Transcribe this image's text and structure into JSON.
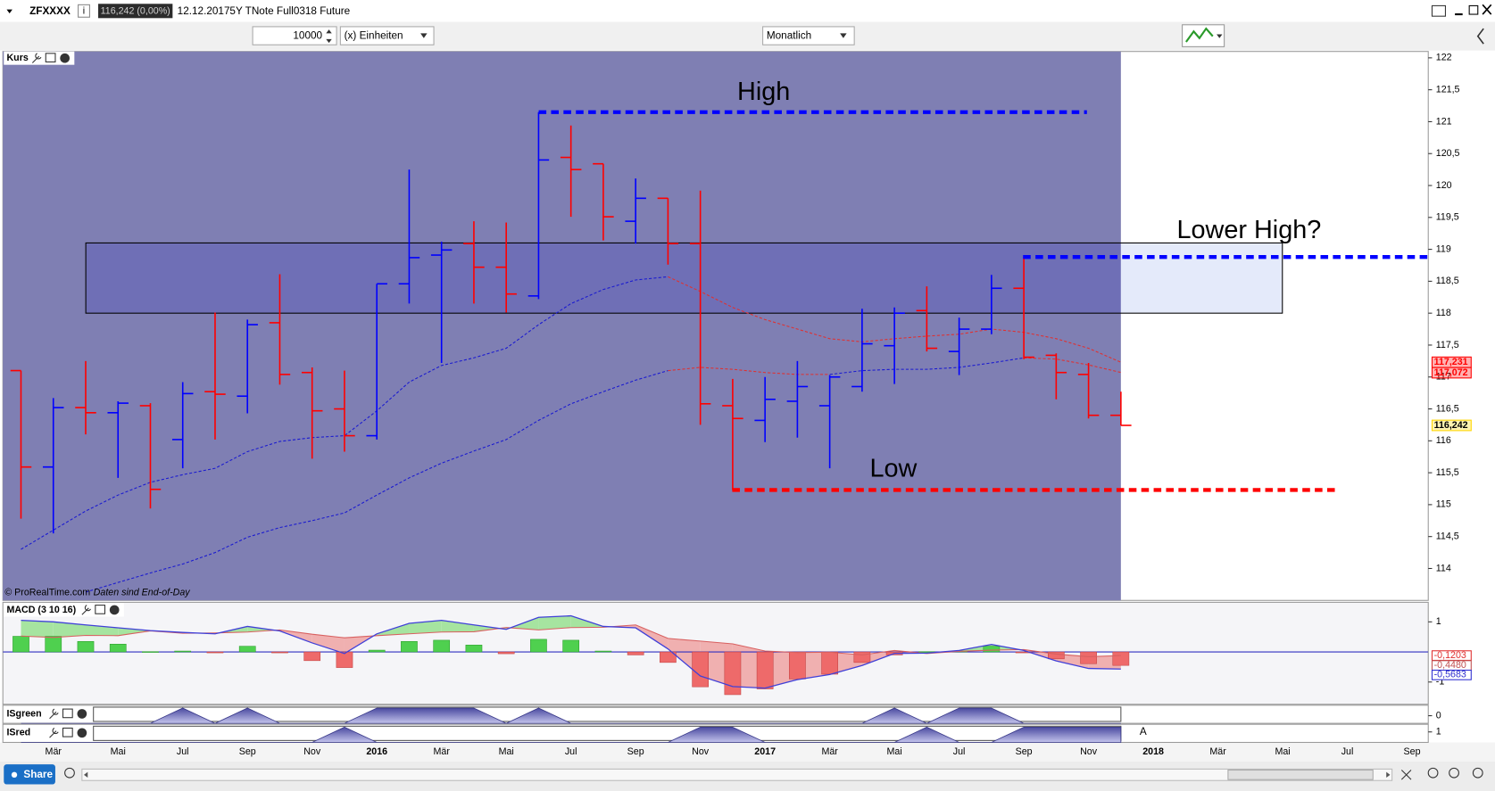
{
  "ui": {
    "symbol": "ZFXXXX",
    "quote": "116,242 (0,00%)",
    "date": "12.12.2017",
    "instrument": "5Y TNote Full0318 Future",
    "quantity": "10000",
    "units": "(x) Einheiten",
    "period": "Monatlich",
    "copyright": "© ProRealTime.com",
    "data_note": "Daten sind End-of-Day",
    "share": "Share",
    "marker": "A"
  },
  "chart_data": [
    {
      "type": "ohlc",
      "title": "Kurs",
      "categories": [
        null,
        "Mär",
        null,
        "Mai",
        null,
        "Jul",
        null,
        "Sep",
        null,
        "Nov",
        null,
        "2016",
        null,
        "Mär",
        null,
        "Mai",
        null,
        "Jul",
        null,
        "Sep",
        null,
        "Nov",
        null,
        "2017",
        null,
        "Mär",
        null,
        "Mai",
        null,
        "Jul",
        null,
        "Sep",
        null,
        "Nov",
        null,
        "2018",
        null,
        "Mär",
        null,
        "Mai",
        null,
        "Jul",
        null,
        "Sep"
      ],
      "open": [
        117.1,
        115.59,
        116.52,
        116.44,
        116.55,
        116.02,
        116.77,
        116.7,
        117.85,
        117.07,
        116.5,
        116.08,
        118.46,
        118.91,
        119.09,
        118.72,
        118.27,
        120.44,
        120.34,
        119.44,
        119.8,
        119.09,
        116.55,
        116.32,
        116.62,
        116.55,
        116.85,
        117.49,
        118.04,
        117.4,
        117.75,
        118.39,
        117.34,
        117.04,
        116.4,
        null,
        null,
        null,
        null,
        null,
        null,
        null,
        null,
        null
      ],
      "high": [
        117.1,
        116.67,
        117.25,
        116.62,
        116.59,
        116.92,
        118.01,
        117.9,
        118.61,
        117.15,
        117.1,
        118.46,
        120.25,
        119.12,
        119.44,
        119.42,
        121.15,
        120.94,
        120.34,
        120.11,
        119.8,
        119.92,
        116.97,
        117.0,
        117.25,
        117.03,
        118.07,
        118.09,
        118.42,
        117.93,
        118.6,
        118.88,
        117.37,
        117.22,
        116.77,
        null,
        null,
        null,
        null,
        null,
        null,
        null,
        null,
        null
      ],
      "low": [
        114.78,
        114.55,
        116.1,
        115.42,
        114.94,
        115.57,
        116.02,
        116.43,
        116.88,
        115.72,
        115.83,
        116.02,
        118.15,
        117.22,
        118.15,
        118.01,
        118.22,
        119.51,
        119.14,
        119.09,
        118.76,
        116.25,
        115.23,
        115.98,
        116.05,
        115.57,
        116.77,
        116.89,
        117.4,
        117.03,
        117.67,
        117.28,
        116.65,
        116.35,
        116.24,
        null,
        null,
        null,
        null,
        null,
        null,
        null,
        null,
        null
      ],
      "close": [
        115.59,
        116.52,
        116.44,
        116.59,
        115.24,
        116.74,
        116.73,
        117.82,
        117.04,
        116.47,
        116.08,
        118.46,
        118.87,
        118.99,
        118.72,
        118.3,
        120.4,
        120.25,
        119.51,
        119.8,
        119.09,
        116.58,
        116.35,
        116.65,
        116.85,
        117.0,
        117.52,
        118.0,
        117.45,
        117.75,
        118.39,
        117.31,
        117.07,
        116.4,
        116.242,
        null,
        null,
        null,
        null,
        null,
        null,
        null,
        null,
        null
      ],
      "up_color": "#0000ff",
      "down_color": "#ff0000",
      "moving_averages": [
        {
          "color": "#1a1ad0",
          "values": [
            114.3,
            114.6,
            114.9,
            115.15,
            115.35,
            115.47,
            115.57,
            115.83,
            115.99,
            116.05,
            116.08,
            116.47,
            116.92,
            117.18,
            117.3,
            117.45,
            117.82,
            118.15,
            118.37,
            118.52,
            118.57,
            null,
            null,
            null,
            null,
            null,
            null,
            null,
            null,
            null,
            null,
            null,
            null,
            null,
            null,
            null,
            null,
            null,
            null,
            null,
            null,
            null,
            null,
            null
          ]
        },
        {
          "color": "#e03030",
          "values": [
            null,
            null,
            null,
            null,
            null,
            null,
            null,
            null,
            null,
            null,
            null,
            null,
            null,
            null,
            null,
            null,
            null,
            null,
            null,
            null,
            118.57,
            118.34,
            118.09,
            117.9,
            117.75,
            117.6,
            117.55,
            117.6,
            117.64,
            117.67,
            117.75,
            117.7,
            117.6,
            117.45,
            117.231,
            null,
            null,
            null,
            null,
            null,
            null,
            null,
            null,
            null
          ]
        },
        {
          "color": "#1a1ad0",
          "values": [
            null,
            null,
            113.63,
            113.78,
            113.93,
            114.07,
            114.25,
            114.49,
            114.64,
            114.75,
            114.87,
            115.15,
            115.42,
            115.65,
            115.84,
            116.02,
            116.32,
            116.58,
            116.77,
            116.95,
            117.1,
            null,
            null,
            null,
            null,
            117.04,
            117.1,
            117.12,
            117.12,
            117.15,
            117.22,
            117.3,
            null,
            null,
            null,
            null,
            null,
            null,
            null,
            null,
            null,
            null,
            null,
            null
          ]
        },
        {
          "color": "#e03030",
          "values": [
            null,
            null,
            null,
            null,
            null,
            null,
            null,
            null,
            null,
            null,
            null,
            null,
            null,
            null,
            null,
            null,
            null,
            null,
            null,
            null,
            117.1,
            117.15,
            117.12,
            117.07,
            117.04,
            117.04,
            null,
            null,
            null,
            null,
            null,
            117.3,
            117.28,
            117.19,
            117.072,
            null,
            null,
            null,
            null,
            null,
            null,
            null,
            null,
            null
          ]
        }
      ],
      "zone": [
        118.0,
        119.1
      ],
      "levels": [
        {
          "label": "High",
          "value": 121.15,
          "color": "#0000ff"
        },
        {
          "label": "Low",
          "value": 115.23,
          "color": "#ff0000"
        },
        {
          "label": "Lower High?",
          "value": 118.88,
          "color": "#0000ff"
        }
      ],
      "price_labels": [
        {
          "value": 117.231,
          "label": "117,231",
          "color": "#ff0000"
        },
        {
          "value": 117.072,
          "label": "117,072",
          "color": "#ff0000"
        },
        {
          "value": 116.242,
          "label": "116,242",
          "color": "#ffd700"
        }
      ],
      "ylim": [
        113.5,
        122.1
      ],
      "yticks": [
        122,
        {
          "value": 121.5,
          "label": "121,5"
        },
        121,
        {
          "value": 120.5,
          "label": "120,5"
        },
        120,
        {
          "value": 119.5,
          "label": "119,5"
        },
        119,
        {
          "value": 118.5,
          "label": "118,5"
        },
        118,
        {
          "value": 117.5,
          "label": "117,5"
        },
        117,
        {
          "value": 116.5,
          "label": "116,5"
        },
        116,
        {
          "value": 115.5,
          "label": "115,5"
        },
        115,
        {
          "value": 114.5,
          "label": "114,5"
        },
        114
      ]
    },
    {
      "type": "macd",
      "title": "MACD (3 10 16)",
      "values": [
        0.52,
        0.52,
        0.35,
        0.26,
        0.01,
        0.03,
        -0.03,
        0.19,
        -0.03,
        -0.29,
        -0.52,
        0.06,
        0.35,
        0.39,
        0.23,
        -0.06,
        0.42,
        0.39,
        0.03,
        -0.1,
        -0.35,
        -1.16,
        -1.42,
        -1.23,
        -0.9,
        -0.74,
        -0.35,
        -0.1,
        0.01,
        0.03,
        0.19,
        -0.03,
        -0.23,
        -0.39,
        -0.448,
        null,
        null,
        null,
        null,
        null,
        null,
        null,
        null,
        null
      ],
      "macd": [
        1.05,
        1.0,
        0.9,
        0.8,
        0.71,
        0.65,
        0.6,
        0.85,
        0.7,
        0.3,
        -0.05,
        0.6,
        0.95,
        1.05,
        0.9,
        0.75,
        1.15,
        1.2,
        0.85,
        0.8,
        0.1,
        -0.8,
        -1.15,
        -1.2,
        -0.92,
        -0.75,
        -0.45,
        -0.05,
        -0.04,
        0.05,
        0.25,
        0.05,
        -0.3,
        -0.55,
        -0.5683,
        null,
        null,
        null,
        null,
        null,
        null,
        null,
        null,
        null
      ],
      "signal": [
        0.53,
        0.48,
        0.55,
        0.54,
        0.7,
        0.62,
        0.63,
        0.66,
        0.73,
        0.59,
        0.47,
        0.54,
        0.6,
        0.66,
        0.67,
        0.81,
        0.73,
        0.81,
        0.82,
        0.9,
        0.45,
        0.36,
        0.27,
        0.03,
        -0.02,
        -0.01,
        -0.1,
        0.05,
        -0.05,
        0.02,
        0.06,
        0.08,
        -0.07,
        -0.16,
        -0.1203,
        null,
        null,
        null,
        null,
        null,
        null,
        null,
        null,
        null
      ],
      "up_color": "#4fd04f",
      "down_color": "#ee6a6a",
      "macd_color": "#4040d8",
      "signal_color": "#d86060",
      "fill_up": "#a6e4a0",
      "fill_down": "#f0b0b0",
      "last_labels": [
        {
          "value": -0.1203,
          "label": "-0,1203",
          "color": "#e03030"
        },
        {
          "value": -0.448,
          "label": "-0,4480",
          "color": "#c05050"
        },
        {
          "value": -0.5683,
          "label": "-0,5683",
          "color": "#3030d0"
        }
      ],
      "ylim": [
        -1.74,
        1.65
      ],
      "yticks": [
        1,
        -1
      ]
    },
    {
      "type": "signal",
      "title": "ISgreen",
      "values": [
        0,
        0,
        0,
        0,
        0,
        1,
        0,
        1,
        0,
        0,
        0,
        1,
        1,
        1,
        1,
        0,
        1,
        0,
        0,
        0,
        0,
        0,
        0,
        0,
        0,
        0,
        0,
        1,
        0,
        1,
        1,
        0,
        0,
        0,
        0,
        null,
        null,
        null,
        null,
        null,
        null,
        null,
        null,
        null
      ],
      "ylim": [
        0,
        1
      ],
      "yticks": [
        0
      ]
    },
    {
      "type": "signal",
      "title": "ISred",
      "values": [
        0,
        0,
        0,
        0,
        0,
        0,
        0,
        0,
        0,
        0,
        1,
        0,
        0,
        0,
        0,
        0,
        0,
        0,
        0,
        0,
        0,
        1,
        1,
        0,
        0,
        0,
        0,
        0,
        1,
        0,
        0,
        1,
        1,
        1,
        1,
        null,
        null,
        null,
        null,
        null,
        null,
        null,
        null,
        null
      ],
      "ylim": [
        0,
        1
      ],
      "yticks": [
        1
      ]
    }
  ]
}
